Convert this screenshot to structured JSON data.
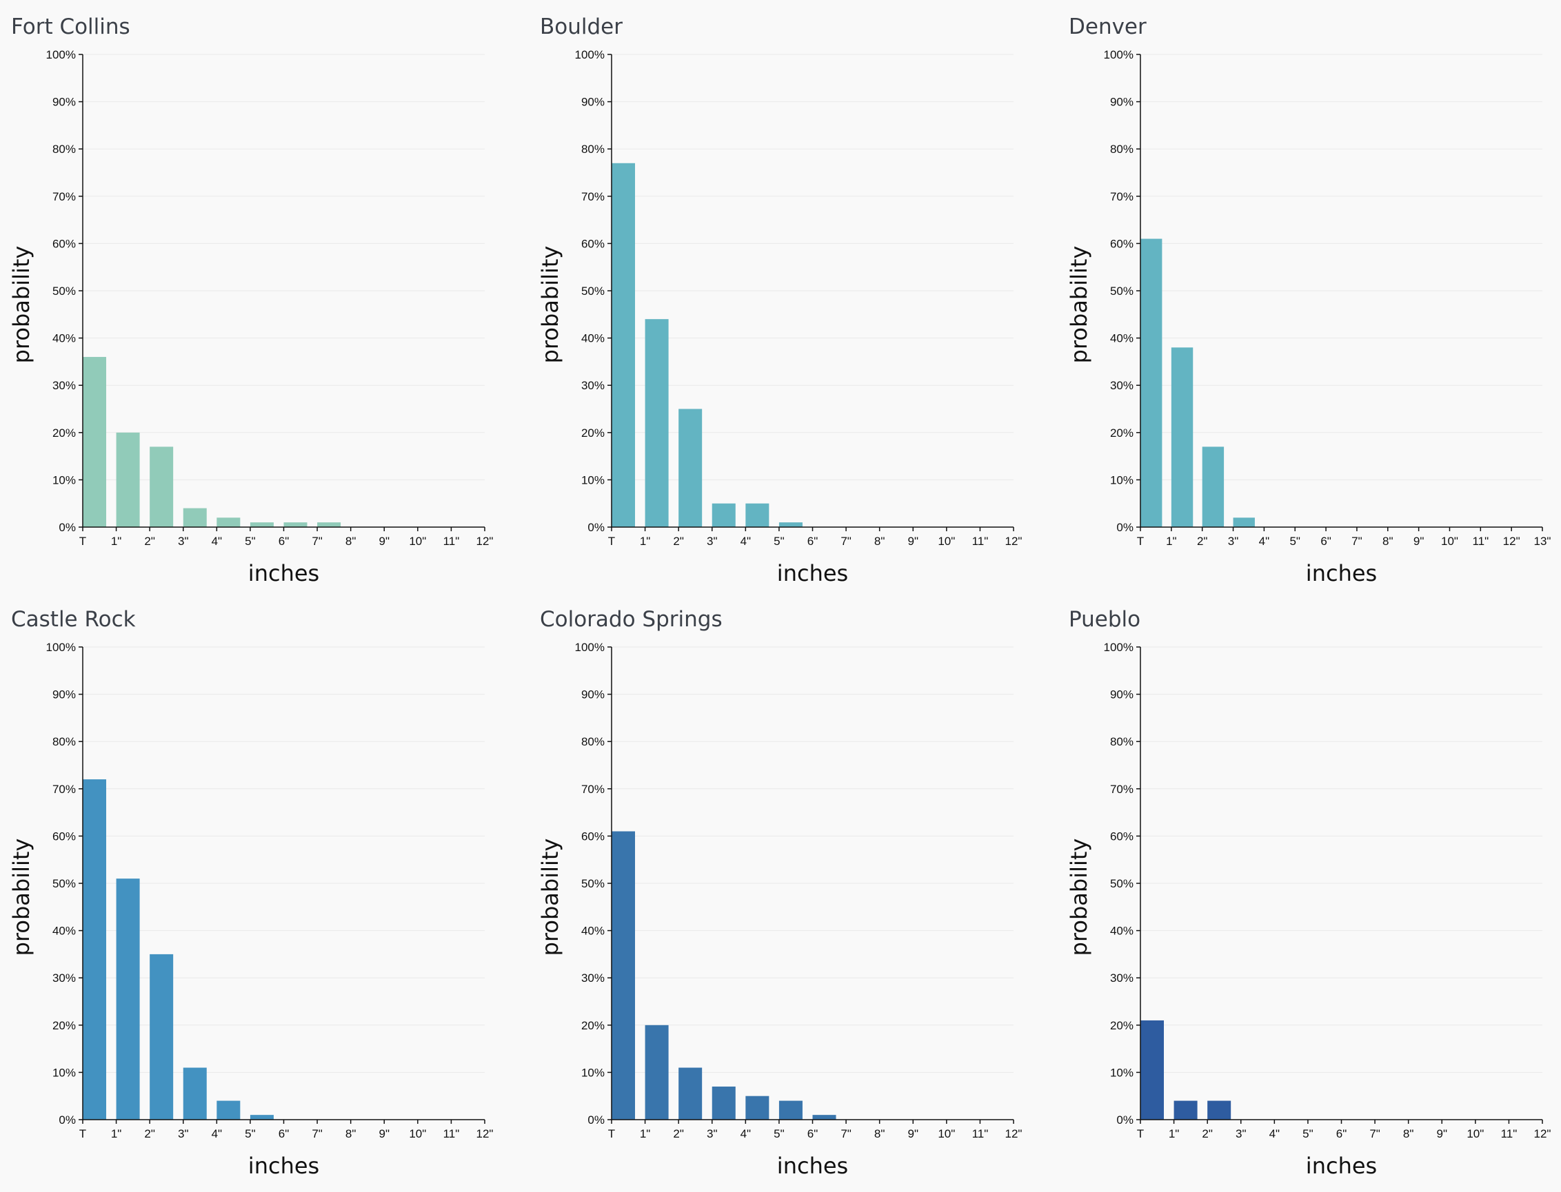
{
  "chart_data": [
    {
      "type": "bar",
      "title": "Fort Collins",
      "xlabel": "inches",
      "ylabel": "probability",
      "color": "#91cbb9",
      "x_ticks": [
        "T",
        "1\"",
        "2\"",
        "3\"",
        "4\"",
        "5\"",
        "6\"",
        "7\"",
        "8\"",
        "9\"",
        "10\"",
        "11\"",
        "12\""
      ],
      "y_ticks": [
        "0%",
        "10%",
        "20%",
        "30%",
        "40%",
        "50%",
        "60%",
        "70%",
        "80%",
        "90%",
        "100%"
      ],
      "ylim": [
        0,
        100
      ],
      "values": [
        36,
        20,
        17,
        4,
        2,
        1,
        1,
        1,
        0,
        0,
        0,
        0
      ],
      "grid": true
    },
    {
      "type": "bar",
      "title": "Boulder",
      "xlabel": "inches",
      "ylabel": "probability",
      "color": "#63b4c2",
      "x_ticks": [
        "T",
        "1\"",
        "2\"",
        "3\"",
        "4\"",
        "5\"",
        "6\"",
        "7\"",
        "8\"",
        "9\"",
        "10\"",
        "11\"",
        "12\""
      ],
      "y_ticks": [
        "0%",
        "10%",
        "20%",
        "30%",
        "40%",
        "50%",
        "60%",
        "70%",
        "80%",
        "90%",
        "100%"
      ],
      "ylim": [
        0,
        100
      ],
      "values": [
        77,
        44,
        25,
        5,
        5,
        1,
        0,
        0,
        0,
        0,
        0,
        0
      ],
      "grid": true
    },
    {
      "type": "bar",
      "title": "Denver",
      "xlabel": "inches",
      "ylabel": "probability",
      "color": "#63b4c2",
      "x_ticks": [
        "T",
        "1\"",
        "2\"",
        "3\"",
        "4\"",
        "5\"",
        "6\"",
        "7\"",
        "8\"",
        "9\"",
        "10\"",
        "11\"",
        "12\"",
        "13\""
      ],
      "y_ticks": [
        "0%",
        "10%",
        "20%",
        "30%",
        "40%",
        "50%",
        "60%",
        "70%",
        "80%",
        "90%",
        "100%"
      ],
      "ylim": [
        0,
        100
      ],
      "values": [
        61,
        38,
        17,
        2,
        0,
        0,
        0,
        0,
        0,
        0,
        0,
        0,
        0
      ],
      "grid": true
    },
    {
      "type": "bar",
      "title": "Castle Rock",
      "xlabel": "inches",
      "ylabel": "probability",
      "color": "#4392c1",
      "x_ticks": [
        "T",
        "1\"",
        "2\"",
        "3\"",
        "4\"",
        "5\"",
        "6\"",
        "7\"",
        "8\"",
        "9\"",
        "10\"",
        "11\"",
        "12\""
      ],
      "y_ticks": [
        "0%",
        "10%",
        "20%",
        "30%",
        "40%",
        "50%",
        "60%",
        "70%",
        "80%",
        "90%",
        "100%"
      ],
      "ylim": [
        0,
        100
      ],
      "values": [
        72,
        51,
        35,
        11,
        4,
        1,
        0,
        0,
        0,
        0,
        0,
        0
      ],
      "grid": true
    },
    {
      "type": "bar",
      "title": "Colorado Springs",
      "xlabel": "inches",
      "ylabel": "probability",
      "color": "#3975ac",
      "x_ticks": [
        "T",
        "1\"",
        "2\"",
        "3\"",
        "4\"",
        "5\"",
        "6\"",
        "7\"",
        "8\"",
        "9\"",
        "10\"",
        "11\"",
        "12\""
      ],
      "y_ticks": [
        "0%",
        "10%",
        "20%",
        "30%",
        "40%",
        "50%",
        "60%",
        "70%",
        "80%",
        "90%",
        "100%"
      ],
      "ylim": [
        0,
        100
      ],
      "values": [
        61,
        20,
        11,
        7,
        5,
        4,
        1,
        0,
        0,
        0,
        0,
        0
      ],
      "grid": true
    },
    {
      "type": "bar",
      "title": "Pueblo",
      "xlabel": "inches",
      "ylabel": "probability",
      "color": "#2e5ca0",
      "x_ticks": [
        "T",
        "1\"",
        "2\"",
        "3\"",
        "4\"",
        "5\"",
        "6\"",
        "7\"",
        "8\"",
        "9\"",
        "10\"",
        "11\"",
        "12\""
      ],
      "y_ticks": [
        "0%",
        "10%",
        "20%",
        "30%",
        "40%",
        "50%",
        "60%",
        "70%",
        "80%",
        "90%",
        "100%"
      ],
      "ylim": [
        0,
        100
      ],
      "values": [
        21,
        4,
        4,
        0,
        0,
        0,
        0,
        0,
        0,
        0,
        0,
        0
      ],
      "grid": true
    }
  ]
}
